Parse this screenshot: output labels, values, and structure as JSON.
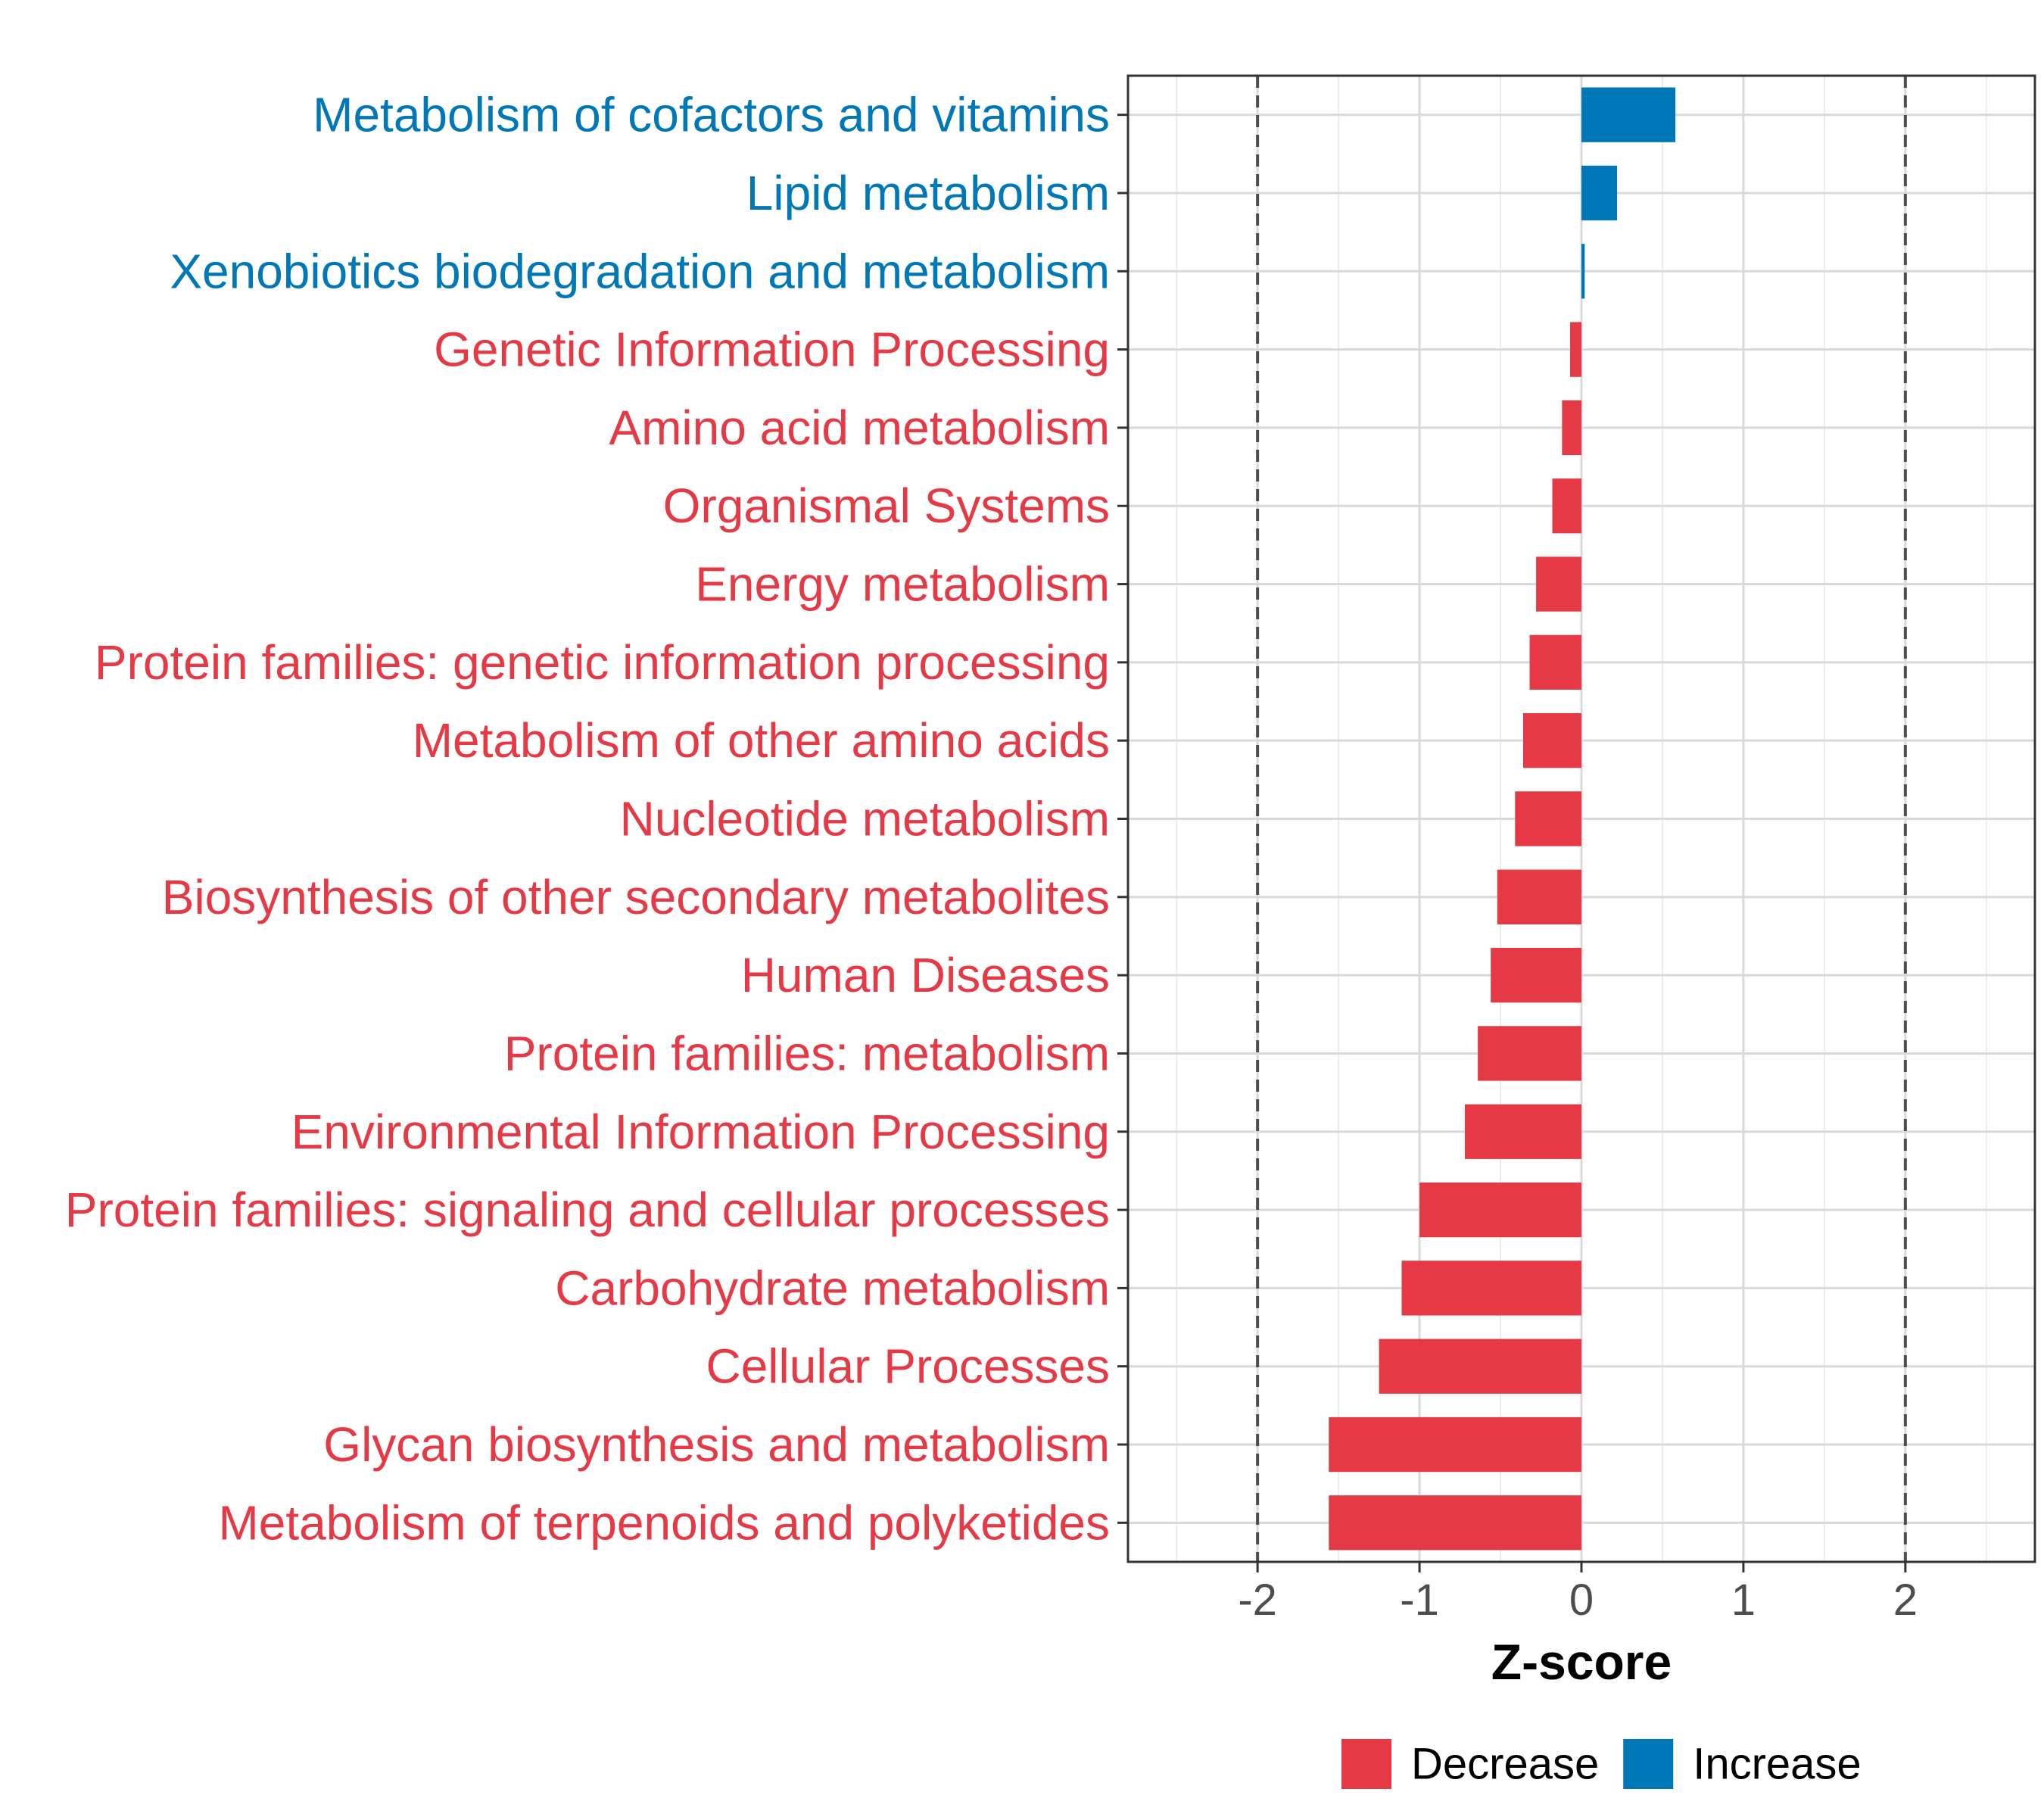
{
  "chart_data": {
    "type": "bar",
    "orientation": "horizontal",
    "xlabel": "Z-score",
    "xlim": [
      -2.8,
      2.8
    ],
    "xticks": [
      -2,
      -1,
      0,
      1,
      2
    ],
    "xtick_labels": [
      "-2",
      "-1",
      "0",
      "1",
      "2"
    ],
    "reference_lines": [
      -2,
      2
    ],
    "grid": true,
    "legend_position": "bottom",
    "categories": [
      "Metabolism of cofactors and vitamins",
      "Lipid metabolism",
      "Xenobiotics biodegradation and metabolism",
      "Genetic Information Processing",
      "Amino acid metabolism",
      "Organismal Systems",
      "Energy metabolism",
      "Protein families: genetic information processing",
      "Metabolism of other amino acids",
      "Nucleotide metabolism",
      "Biosynthesis of other secondary metabolites",
      "Human Diseases",
      "Protein families: metabolism",
      "Environmental Information Processing",
      "Protein families: signaling and cellular processes",
      "Carbohydrate metabolism",
      "Cellular Processes",
      "Glycan biosynthesis and metabolism",
      "Metabolism of terpenoids and polyketides"
    ],
    "values": [
      0.58,
      0.22,
      0.02,
      -0.07,
      -0.12,
      -0.18,
      -0.28,
      -0.32,
      -0.36,
      -0.41,
      -0.52,
      -0.56,
      -0.64,
      -0.72,
      -1.0,
      -1.11,
      -1.25,
      -1.56,
      -1.56
    ],
    "groups": [
      "Increase",
      "Increase",
      "Increase",
      "Decrease",
      "Decrease",
      "Decrease",
      "Decrease",
      "Decrease",
      "Decrease",
      "Decrease",
      "Decrease",
      "Decrease",
      "Decrease",
      "Decrease",
      "Decrease",
      "Decrease",
      "Decrease",
      "Decrease",
      "Decrease"
    ],
    "legend": [
      {
        "label": "Decrease",
        "color": "#E63946"
      },
      {
        "label": "Increase",
        "color": "#0077B6"
      }
    ],
    "colors": {
      "Decrease": "#E63946",
      "Increase": "#0077B6"
    }
  }
}
